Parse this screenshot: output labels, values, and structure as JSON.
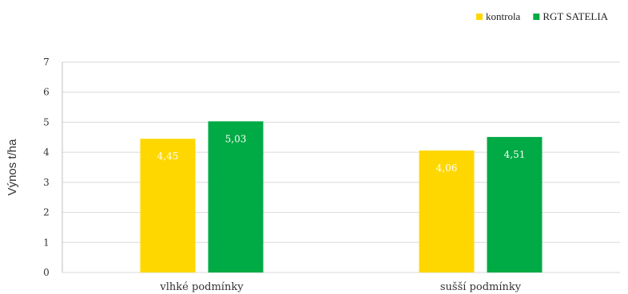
{
  "chart_data": {
    "type": "bar",
    "categories": [
      "vlhké podmínky",
      "sušší podmínky"
    ],
    "series": [
      {
        "name": "kontrola",
        "color": "#ffd700",
        "values": [
          4.45,
          4.06
        ],
        "labels": [
          "4,45",
          "4,06"
        ]
      },
      {
        "name": "RGT SATELIA",
        "color": "#00aa44",
        "values": [
          5.03,
          4.51
        ],
        "labels": [
          "5,03",
          "4,51"
        ]
      }
    ],
    "ylabel": "Výnos t/ha",
    "xlabel": "",
    "ylim": [
      0,
      7
    ],
    "yticks": [
      0,
      1,
      2,
      3,
      4,
      5,
      6,
      7
    ],
    "ytick_labels": [
      "0",
      "1",
      "2",
      "3",
      "4",
      "5",
      "6",
      "7"
    ],
    "grid": true,
    "legend_position": "top-right"
  }
}
